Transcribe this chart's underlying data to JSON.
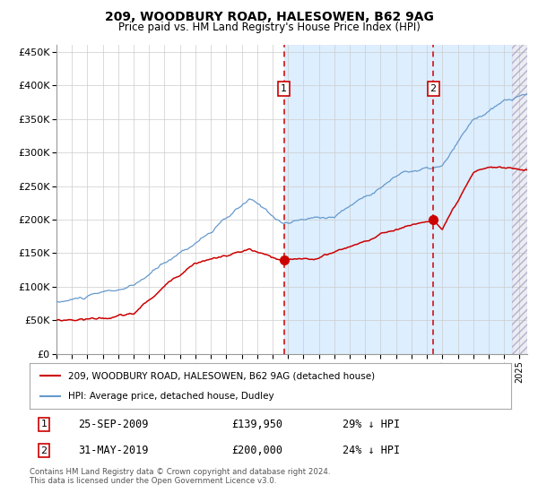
{
  "title": "209, WOODBURY ROAD, HALESOWEN, B62 9AG",
  "subtitle": "Price paid vs. HM Land Registry's House Price Index (HPI)",
  "legend_property": "209, WOODBURY ROAD, HALESOWEN, B62 9AG (detached house)",
  "legend_hpi": "HPI: Average price, detached house, Dudley",
  "sale1_date": "25-SEP-2009",
  "sale1_price": "£139,950",
  "sale1_pct": "29% ↓ HPI",
  "sale2_date": "31-MAY-2019",
  "sale2_price": "£200,000",
  "sale2_pct": "24% ↓ HPI",
  "footer": "Contains HM Land Registry data © Crown copyright and database right 2024.\nThis data is licensed under the Open Government Licence v3.0.",
  "ylim": [
    0,
    460000
  ],
  "xlim_start": 1995.0,
  "xlim_end": 2025.5,
  "sale1_x": 2009.73,
  "sale1_y": 139950,
  "sale2_x": 2019.41,
  "sale2_y": 200000,
  "hatch_start": 2024.5,
  "property_color": "#cc0000",
  "hpi_color": "#6699cc",
  "highlight_color": "#ddeeff",
  "bg_color": "#ffffff",
  "grid_color": "#cccccc"
}
